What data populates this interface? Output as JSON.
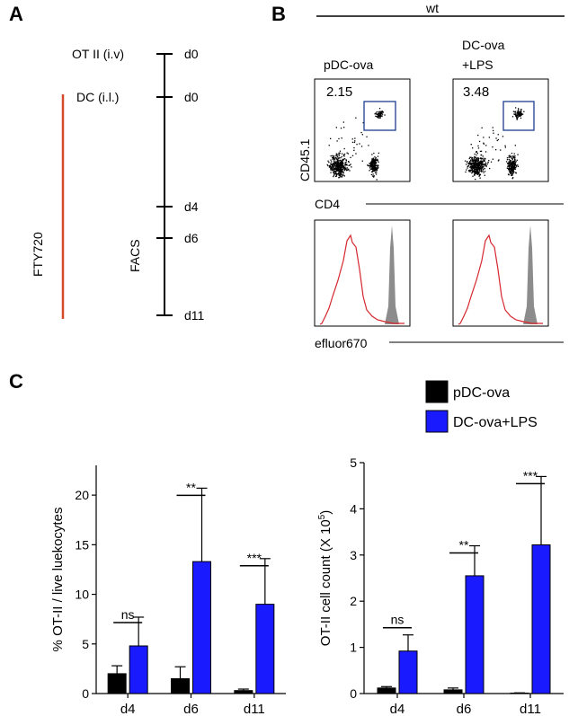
{
  "panels": {
    "a": "A",
    "b": "B",
    "c": "C"
  },
  "timeline": {
    "left_labels": [
      "OT II (i.v)",
      "DC (i.l.)",
      "FACS"
    ],
    "days": [
      "d0",
      "d0",
      "d4",
      "d6",
      "d11"
    ],
    "fty": "FTY720",
    "fty_color": "#d64a2c"
  },
  "flow": {
    "header": "wt",
    "col_titles": [
      "pDC-ova",
      "DC-ova\n+LPS"
    ],
    "gate_values": [
      "2.15",
      "3.48"
    ],
    "ylabel": "CD45.1",
    "xlabel_dot": "CD4",
    "xlabel_hist": "efluor670",
    "gate_color": "#1d3f8f",
    "hist_color": "#d6272e",
    "fill_color": "#8c8c8c"
  },
  "legend": {
    "items": [
      {
        "name": "pDC-ova",
        "color": "#000000"
      },
      {
        "name": "DC-ova+LPS",
        "color": "#1a1aff"
      }
    ]
  },
  "chart_data": [
    {
      "type": "bar",
      "ylabel": "% OT-II / live luekocytes",
      "categories": [
        "d4",
        "d6",
        "d11"
      ],
      "ylim": [
        0,
        23
      ],
      "yticks": [
        0,
        5,
        10,
        15,
        20
      ],
      "series": [
        {
          "name": "pDC-ova",
          "values": [
            2.0,
            1.5,
            0.3
          ],
          "errors": [
            0.8,
            1.2,
            0.15
          ]
        },
        {
          "name": "DC-ova+LPS",
          "values": [
            4.8,
            13.3,
            9.0
          ],
          "errors": [
            2.9,
            7.4,
            4.6
          ]
        }
      ],
      "significance": [
        "ns",
        "**",
        "***"
      ]
    },
    {
      "type": "bar",
      "ylabel": "OT-II cell count (X 10",
      "ylabel_sup": "5",
      "ylabel_close": ")",
      "categories": [
        "d4",
        "d6",
        "d11"
      ],
      "ylim": [
        0,
        5
      ],
      "yticks": [
        0,
        1,
        2,
        3,
        4,
        5
      ],
      "series": [
        {
          "name": "pDC-ova",
          "values": [
            0.12,
            0.08,
            0.01
          ],
          "errors": [
            0.03,
            0.04,
            0.005
          ]
        },
        {
          "name": "DC-ova+LPS",
          "values": [
            0.92,
            2.55,
            3.22
          ],
          "errors": [
            0.35,
            0.65,
            1.48
          ]
        }
      ],
      "significance": [
        "ns",
        "**",
        "***"
      ]
    }
  ]
}
